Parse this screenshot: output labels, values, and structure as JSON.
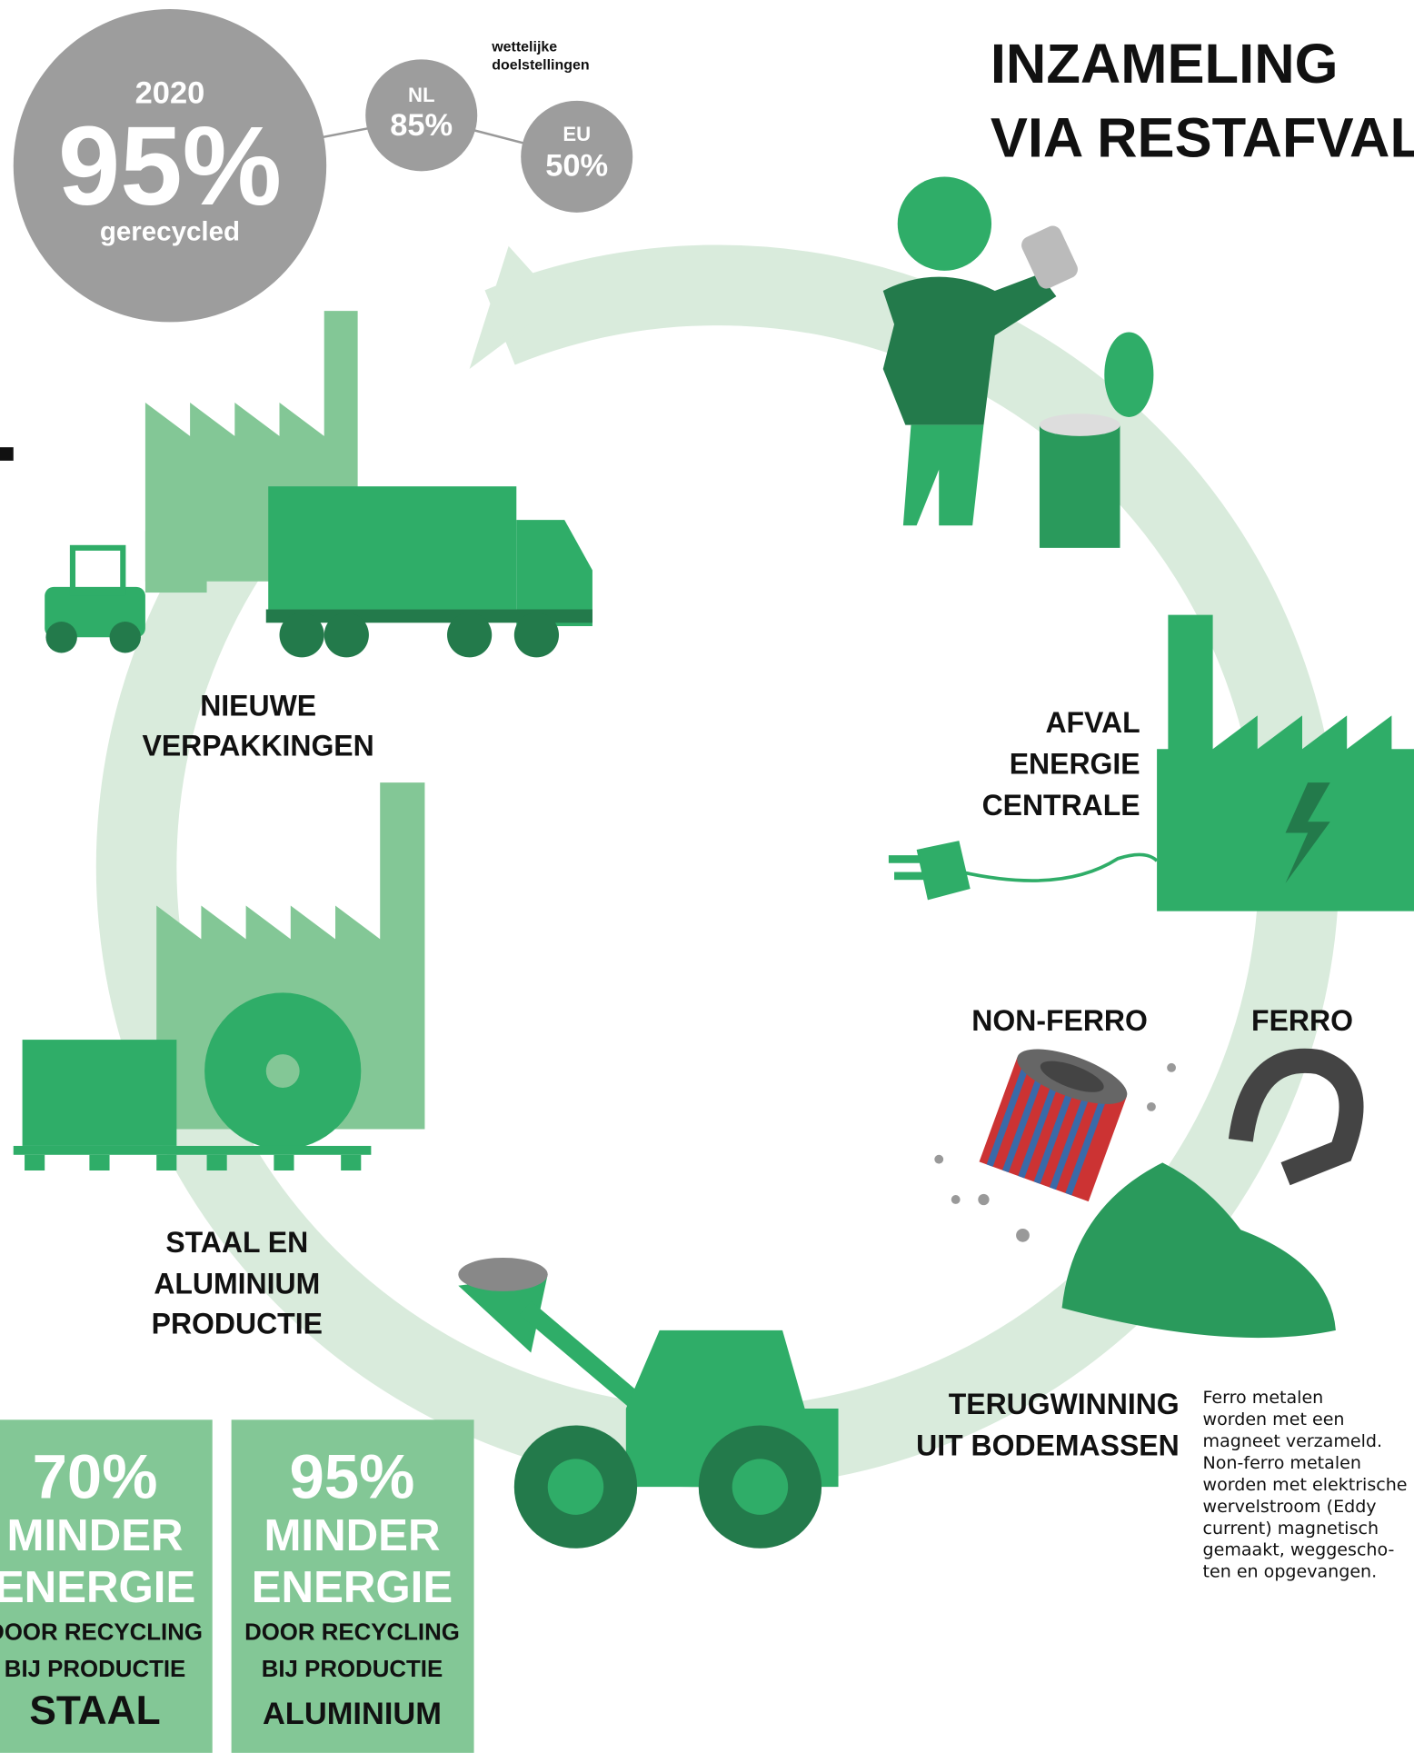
{
  "title": [
    "INZAMELING",
    "VIA RESTAFVAL"
  ],
  "stats": {
    "year": "2020",
    "percent": "95%",
    "label": "gerecycled",
    "targets_title": [
      "wettelijke",
      "doelstellingen"
    ],
    "nl": {
      "code": "NL",
      "value": "85%"
    },
    "eu": {
      "code": "EU",
      "value": "50%"
    }
  },
  "stages": {
    "energy_plant": [
      "AFVAL",
      "ENERGIE",
      "CENTRALE"
    ],
    "recovery": [
      "TERUGWINNING",
      "UIT BODEMASSEN"
    ],
    "production": [
      "STAAL EN",
      "ALUMINIUM",
      "PRODUCTIE"
    ],
    "packaging": [
      "NIEUWE",
      "VERPAKKINGEN"
    ]
  },
  "separation": {
    "non_ferro": "NON-FERRO",
    "ferro": "FERRO"
  },
  "description": [
    "Ferro metalen",
    "worden met een",
    "magneet verzameld.",
    "Non-ferro metalen",
    "worden met elektrische",
    "wervelstroom (Eddy",
    "current) magnetisch",
    "gemaakt, weggescho-",
    "ten en opgevangen."
  ],
  "savings": [
    {
      "percent": "70%",
      "lines": [
        "MINDER",
        "ENERGIE"
      ],
      "sub": [
        "DOOR RECYCLING",
        "BIJ PRODUCTIE"
      ],
      "metal": "STAAL"
    },
    {
      "percent": "95%",
      "lines": [
        "MINDER",
        "ENERGIE"
      ],
      "sub": [
        "DOOR RECYCLING",
        "BIJ PRODUCTIE"
      ],
      "metal": "ALUMINIUM"
    }
  ]
}
